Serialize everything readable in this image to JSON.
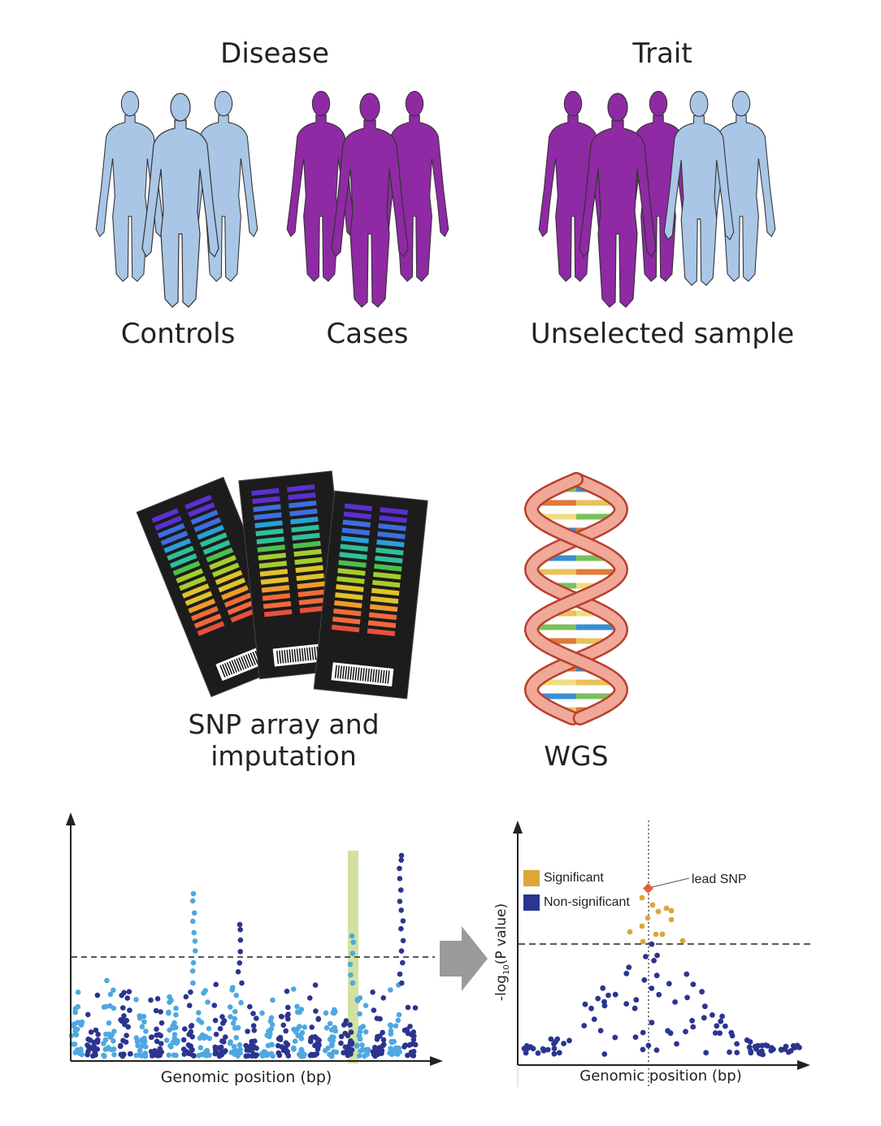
{
  "top": {
    "disease_title": "Disease",
    "trait_title": "Trait",
    "controls_label": "Controls",
    "cases_label": "Cases",
    "unselected_label": "Unselected sample"
  },
  "middle": {
    "snp_label_line1": "SNP array and",
    "snp_label_line2": "imputation",
    "wgs_label": "WGS"
  },
  "manhattan": {
    "xlabel": "Genomic position (bp)",
    "colors": {
      "light": "#4fa8e0",
      "dark": "#2b3590",
      "highlight": "#c9dd8f"
    }
  },
  "locus": {
    "xlabel": "Genomic position (bp)",
    "ylabel": "-log10(P value)",
    "ylabel_main": "-log",
    "ylabel_sub": "10",
    "ylabel_rest": "(P value)",
    "legend": [
      {
        "label": "Significant",
        "color": "#dba63c"
      },
      {
        "label": "Non-significant",
        "color": "#2b3590"
      }
    ],
    "lead_label": "lead SNP",
    "lead_color": "#e0603a"
  },
  "colors": {
    "control": "#a9c6e6",
    "case": "#8f2aa4",
    "outline": "#333333",
    "arrow": "#999999"
  }
}
